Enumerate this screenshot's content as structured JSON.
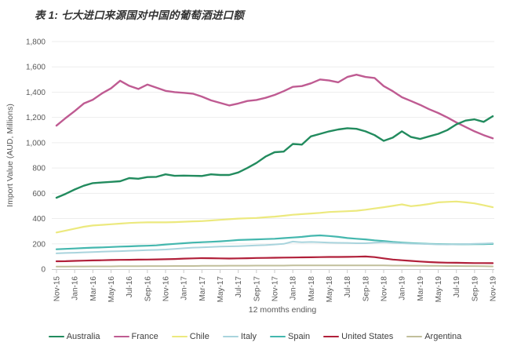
{
  "title": "表 1: 七大进口来源国对中国的葡萄酒进口额",
  "chart_data": {
    "type": "line",
    "title": "表 1: 七大进口来源国对中国的葡萄酒进口额",
    "xlabel": "12 momths ending",
    "ylabel": "Import Value (AUD, Millions)",
    "ylim": [
      0,
      1800
    ],
    "ytick_step": 200,
    "xtick_every": 2,
    "grid": true,
    "legend_position": "bottom",
    "axis_text_color": "#595959",
    "gridline_color": "#ededed",
    "axis_line_color": "#c9c9c9",
    "categories": [
      "Nov-15",
      "Dec-15",
      "Jan-16",
      "Feb-16",
      "Mar-16",
      "Apr-16",
      "May-16",
      "Jun-16",
      "Jul-16",
      "Aug-16",
      "Sep-16",
      "Oct-16",
      "Nov-16",
      "Dec-16",
      "Jan-17",
      "Feb-17",
      "Mar-17",
      "Apr-17",
      "May-17",
      "Jun-17",
      "Jul-17",
      "Aug-17",
      "Sep-17",
      "Oct-17",
      "Nov-17",
      "Dec-17",
      "Jan-18",
      "Feb-18",
      "Mar-18",
      "Apr-18",
      "May-18",
      "Jun-18",
      "Jul-18",
      "Aug-18",
      "Sep-18",
      "Oct-18",
      "Nov-18",
      "Dec-18",
      "Jan-19",
      "Feb-19",
      "Mar-19",
      "Apr-19",
      "May-19",
      "Jun-19",
      "Jul-19",
      "Aug-19",
      "Sep-19",
      "Oct-19",
      "Nov-19"
    ],
    "series": [
      {
        "name": "Australia",
        "color": "#228b5e",
        "width": 2.4,
        "values": [
          565,
          595,
          630,
          660,
          680,
          685,
          690,
          695,
          720,
          715,
          728,
          730,
          750,
          738,
          740,
          738,
          737,
          750,
          745,
          745,
          765,
          800,
          840,
          890,
          925,
          930,
          990,
          985,
          1050,
          1070,
          1090,
          1105,
          1115,
          1110,
          1090,
          1060,
          1015,
          1040,
          1090,
          1045,
          1030,
          1050,
          1070,
          1100,
          1145,
          1175,
          1185,
          1165,
          1210
        ]
      },
      {
        "name": "France",
        "color": "#bf5b92",
        "width": 2.4,
        "values": [
          1135,
          1195,
          1250,
          1310,
          1340,
          1390,
          1430,
          1490,
          1450,
          1425,
          1460,
          1435,
          1410,
          1400,
          1395,
          1388,
          1365,
          1335,
          1315,
          1295,
          1310,
          1330,
          1338,
          1355,
          1378,
          1408,
          1442,
          1448,
          1470,
          1500,
          1492,
          1478,
          1520,
          1538,
          1520,
          1512,
          1448,
          1408,
          1360,
          1330,
          1300,
          1265,
          1235,
          1200,
          1160,
          1125,
          1090,
          1060,
          1035
        ]
      },
      {
        "name": "Chile",
        "color": "#ece97e",
        "width": 2.2,
        "values": [
          290,
          305,
          320,
          335,
          345,
          350,
          355,
          360,
          365,
          368,
          370,
          370,
          370,
          372,
          375,
          378,
          380,
          385,
          390,
          395,
          400,
          402,
          405,
          410,
          415,
          422,
          430,
          435,
          440,
          445,
          452,
          455,
          458,
          462,
          470,
          480,
          490,
          500,
          512,
          498,
          505,
          515,
          528,
          532,
          535,
          528,
          520,
          505,
          490
        ]
      },
      {
        "name": "Italy",
        "color": "#a9d4dd",
        "width": 2,
        "values": [
          125,
          128,
          130,
          133,
          135,
          138,
          140,
          142,
          145,
          147,
          150,
          152,
          155,
          160,
          165,
          170,
          172,
          175,
          178,
          180,
          182,
          185,
          188,
          190,
          195,
          200,
          218,
          212,
          215,
          212,
          210,
          208,
          207,
          205,
          205,
          210,
          212,
          208,
          205,
          202,
          200,
          198,
          196,
          195,
          196,
          198,
          200,
          202,
          205
        ]
      },
      {
        "name": "Spain",
        "color": "#44b7ae",
        "width": 2.2,
        "values": [
          157,
          160,
          163,
          167,
          170,
          172,
          175,
          178,
          180,
          183,
          185,
          188,
          195,
          200,
          205,
          210,
          213,
          216,
          220,
          225,
          230,
          233,
          235,
          238,
          240,
          245,
          250,
          255,
          263,
          267,
          262,
          255,
          246,
          240,
          235,
          228,
          222,
          215,
          210,
          206,
          203,
          200,
          198,
          197,
          196,
          197,
          198,
          198,
          200
        ]
      },
      {
        "name": "United States",
        "color": "#b1203a",
        "width": 2.2,
        "values": [
          62,
          63,
          65,
          67,
          69,
          70,
          72,
          73,
          74,
          75,
          76,
          77,
          78,
          80,
          83,
          85,
          87,
          86,
          85,
          84,
          85,
          86,
          88,
          89,
          90,
          91,
          92,
          93,
          94,
          95,
          96,
          96,
          97,
          98,
          100,
          95,
          85,
          76,
          70,
          65,
          60,
          56,
          53,
          51,
          50,
          49,
          48,
          48,
          47
        ]
      },
      {
        "name": "Argentina",
        "color": "#c1bf9b",
        "width": 2,
        "values": [
          20,
          20,
          21,
          21,
          22,
          22,
          22,
          23,
          23,
          23,
          24,
          24,
          24,
          25,
          25,
          25,
          26,
          26,
          26,
          27,
          27,
          27,
          28,
          28,
          28,
          28,
          29,
          29,
          29,
          30,
          30,
          30,
          30,
          30,
          30,
          29,
          29,
          28,
          28,
          27,
          27,
          26,
          26,
          25,
          25,
          24,
          24,
          23,
          22
        ]
      }
    ]
  }
}
